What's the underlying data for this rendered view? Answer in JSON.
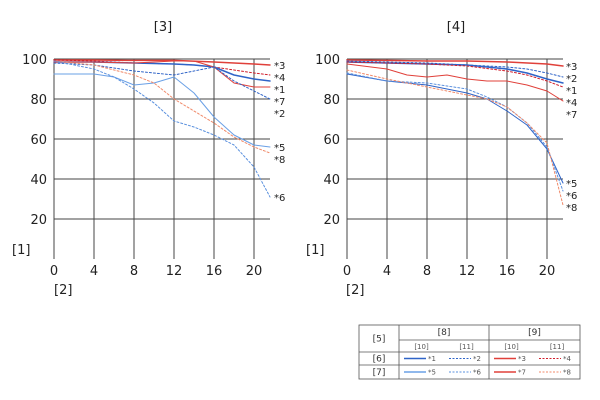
{
  "chart_data": [
    {
      "type": "line",
      "title": "[3]",
      "ylabel": "[1]",
      "xlabel": "[2]",
      "xlim": [
        0,
        21.6
      ],
      "ylim": [
        0,
        100
      ],
      "x_ticks": [
        0,
        4,
        8,
        12,
        16,
        20
      ],
      "y_ticks": [
        20,
        40,
        60,
        80,
        100
      ],
      "grid": true,
      "series": [
        {
          "name": "*3",
          "color": "#e0403a",
          "dashed": false,
          "width": 1.5,
          "points": [
            [
              0,
              99.5
            ],
            [
              4,
              99.5
            ],
            [
              8,
              99.3
            ],
            [
              12,
              99.3
            ],
            [
              16,
              98.5
            ],
            [
              20,
              97.5
            ],
            [
              21.6,
              97
            ]
          ]
        },
        {
          "name": "*4",
          "color": "#d11e2b",
          "dashed": true,
          "width": 1,
          "points": [
            [
              0,
              99.5
            ],
            [
              4,
              99
            ],
            [
              8,
              98
            ],
            [
              12,
              97.5
            ],
            [
              14,
              97
            ],
            [
              16,
              96
            ],
            [
              18,
              94.5
            ],
            [
              20,
              93
            ],
            [
              21.6,
              92
            ]
          ]
        },
        {
          "name": "*1",
          "color": "#2f64c8",
          "dashed": false,
          "width": 1.5,
          "points": [
            [
              0,
              98.5
            ],
            [
              4,
              98.5
            ],
            [
              8,
              98
            ],
            [
              12,
              97.5
            ],
            [
              14,
              97
            ],
            [
              16,
              96
            ],
            [
              18,
              92
            ],
            [
              20,
              90
            ],
            [
              21.6,
              89
            ]
          ]
        },
        {
          "name": "*7",
          "color": "#e0403a",
          "dashed": false,
          "width": 1,
          "points": [
            [
              0,
              98.5
            ],
            [
              4,
              98.5
            ],
            [
              8,
              98
            ],
            [
              12,
              99
            ],
            [
              14,
              99
            ],
            [
              16,
              96
            ],
            [
              18,
              88
            ],
            [
              20,
              86
            ],
            [
              21.6,
              86
            ]
          ]
        },
        {
          "name": "*2",
          "color": "#2f64c8",
          "dashed": true,
          "width": 1,
          "points": [
            [
              0,
              98
            ],
            [
              4,
              97
            ],
            [
              8,
              94
            ],
            [
              12,
              92
            ],
            [
              14,
              94
            ],
            [
              16,
              96
            ],
            [
              18,
              89
            ],
            [
              20,
              84
            ],
            [
              21.6,
              80
            ]
          ]
        },
        {
          "name": "*5",
          "color": "#6aa0e6",
          "dashed": false,
          "width": 1,
          "points": [
            [
              0,
              92.5
            ],
            [
              4,
              92.5
            ],
            [
              6,
              91
            ],
            [
              8,
              87
            ],
            [
              10,
              88
            ],
            [
              12,
              91
            ],
            [
              14,
              83
            ],
            [
              16,
              71
            ],
            [
              18,
              62
            ],
            [
              20,
              57
            ],
            [
              21.6,
              56
            ]
          ]
        },
        {
          "name": "*8",
          "color": "#f08a6a",
          "dashed": true,
          "width": 1,
          "points": [
            [
              0,
              99
            ],
            [
              4,
              97
            ],
            [
              8,
              92
            ],
            [
              10,
              88
            ],
            [
              12,
              80
            ],
            [
              14,
              74
            ],
            [
              16,
              68
            ],
            [
              18,
              61
            ],
            [
              20,
              56
            ],
            [
              21.6,
              53
            ]
          ]
        },
        {
          "name": "*6",
          "color": "#5a90de",
          "dashed": true,
          "width": 1,
          "points": [
            [
              0,
              99
            ],
            [
              4,
              95
            ],
            [
              6,
              91
            ],
            [
              8,
              85
            ],
            [
              10,
              78
            ],
            [
              12,
              69
            ],
            [
              14,
              66
            ],
            [
              16,
              62
            ],
            [
              18,
              57
            ],
            [
              20,
              46
            ],
            [
              21.6,
              31
            ]
          ]
        }
      ]
    },
    {
      "type": "line",
      "title": "[4]",
      "ylabel": "[1]",
      "xlabel": "[2]",
      "xlim": [
        0,
        21.6
      ],
      "ylim": [
        0,
        100
      ],
      "x_ticks": [
        0,
        4,
        8,
        12,
        16,
        20
      ],
      "y_ticks": [
        20,
        40,
        60,
        80,
        100
      ],
      "grid": true,
      "series": [
        {
          "name": "*3",
          "color": "#e0403a",
          "dashed": false,
          "width": 1.5,
          "points": [
            [
              0,
              99.5
            ],
            [
              4,
              99.3
            ],
            [
              8,
              99
            ],
            [
              12,
              99
            ],
            [
              16,
              98.5
            ],
            [
              20,
              97.5
            ],
            [
              21.6,
              96.5
            ]
          ]
        },
        {
          "name": "*2",
          "color": "#2f64c8",
          "dashed": true,
          "width": 1,
          "points": [
            [
              0,
              99
            ],
            [
              4,
              98.5
            ],
            [
              8,
              98
            ],
            [
              12,
              97
            ],
            [
              16,
              96
            ],
            [
              18,
              95
            ],
            [
              20,
              93
            ],
            [
              21.6,
              91
            ]
          ]
        },
        {
          "name": "*1",
          "color": "#2f64c8",
          "dashed": false,
          "width": 1.5,
          "points": [
            [
              0,
              98.5
            ],
            [
              4,
              98
            ],
            [
              8,
              97.5
            ],
            [
              12,
              97
            ],
            [
              16,
              95
            ],
            [
              18,
              93
            ],
            [
              20,
              90
            ],
            [
              21.6,
              88
            ]
          ]
        },
        {
          "name": "*4",
          "color": "#d11e2b",
          "dashed": true,
          "width": 1,
          "points": [
            [
              0,
              98.5
            ],
            [
              4,
              98
            ],
            [
              8,
              97.5
            ],
            [
              12,
              96.5
            ],
            [
              16,
              94
            ],
            [
              18,
              92
            ],
            [
              20,
              89
            ],
            [
              21.6,
              86
            ]
          ]
        },
        {
          "name": "*7",
          "color": "#e0403a",
          "dashed": false,
          "width": 1,
          "points": [
            [
              0,
              97.5
            ],
            [
              4,
              95
            ],
            [
              6,
              92
            ],
            [
              8,
              91
            ],
            [
              10,
              92
            ],
            [
              12,
              90
            ],
            [
              14,
              89
            ],
            [
              16,
              89
            ],
            [
              18,
              87
            ],
            [
              20,
              84
            ],
            [
              21.6,
              79
            ]
          ]
        },
        {
          "name": "*5",
          "color": "#2f64c8",
          "dashed": false,
          "width": 1,
          "points": [
            [
              0,
              92.5
            ],
            [
              4,
              89
            ],
            [
              8,
              87
            ],
            [
              12,
              83
            ],
            [
              14,
              80
            ],
            [
              16,
              74
            ],
            [
              18,
              67
            ],
            [
              20,
              55
            ],
            [
              21.6,
              38
            ]
          ]
        },
        {
          "name": "*6",
          "color": "#5a90de",
          "dashed": true,
          "width": 1,
          "points": [
            [
              0,
              93
            ],
            [
              4,
              89
            ],
            [
              8,
              88
            ],
            [
              12,
              85
            ],
            [
              14,
              81
            ],
            [
              16,
              76
            ],
            [
              18,
              68
            ],
            [
              20,
              56
            ],
            [
              21.6,
              34
            ]
          ]
        },
        {
          "name": "*8",
          "color": "#f08a6a",
          "dashed": true,
          "width": 1,
          "points": [
            [
              0,
              94.5
            ],
            [
              4,
              90
            ],
            [
              8,
              86
            ],
            [
              12,
              82
            ],
            [
              14,
              80
            ],
            [
              16,
              76
            ],
            [
              18,
              68
            ],
            [
              20,
              58
            ],
            [
              21.6,
              27
            ]
          ]
        }
      ]
    }
  ],
  "legend_table": {
    "corner": "[5]",
    "col_groups": [
      "[8]",
      "[9]"
    ],
    "sub_cols": [
      "[10]",
      "[11]",
      "[10]",
      "[11]"
    ],
    "rows": [
      {
        "label": "[6]",
        "entries": [
          {
            "name": "*1",
            "color": "#2f64c8",
            "dashed": false
          },
          {
            "name": "*2",
            "color": "#2f64c8",
            "dashed": true
          },
          {
            "name": "*3",
            "color": "#e0403a",
            "dashed": false
          },
          {
            "name": "*4",
            "color": "#d11e2b",
            "dashed": true
          }
        ]
      },
      {
        "label": "[7]",
        "entries": [
          {
            "name": "*5",
            "color": "#6aa0e6",
            "dashed": false
          },
          {
            "name": "*6",
            "color": "#5a90de",
            "dashed": true
          },
          {
            "name": "*7",
            "color": "#e0403a",
            "dashed": false
          },
          {
            "name": "*8",
            "color": "#f08a6a",
            "dashed": true
          }
        ]
      }
    ]
  }
}
